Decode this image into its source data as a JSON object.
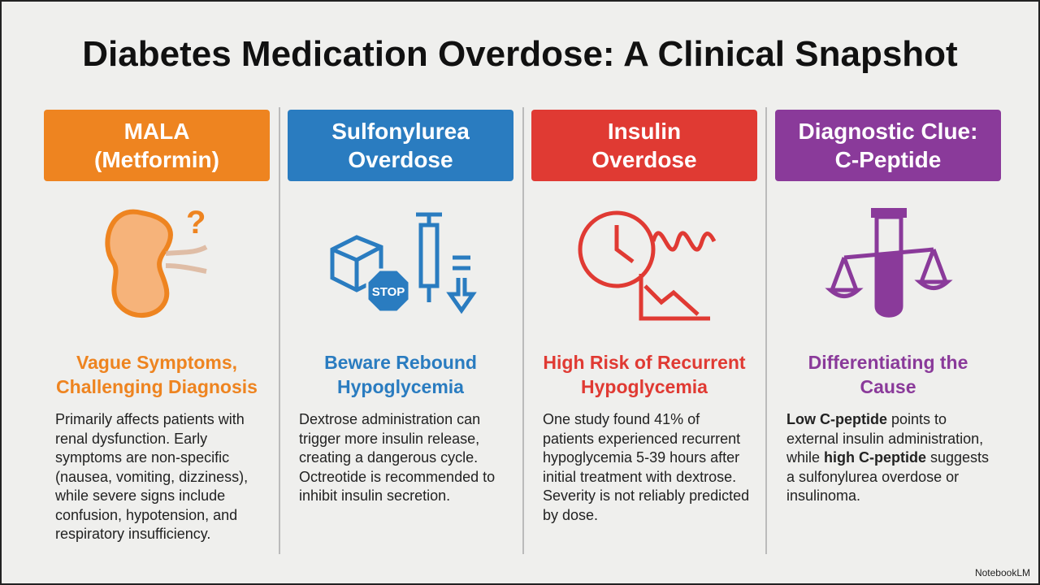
{
  "title": "Diabetes Medication Overdose: A Clinical Snapshot",
  "columns": [
    {
      "heading": [
        "MALA",
        "(Metformin)"
      ],
      "icon_label": "?",
      "subheading": [
        "Vague Symptoms,",
        "Challenging Diagnosis"
      ],
      "body": [
        {
          "text": "Primarily affects patients with renal dysfunction. Early symptoms are non-specific (nausea, vomiting, dizziness), while severe signs include confusion, hypotension, and respiratory insufficiency.",
          "bold": false
        }
      ]
    },
    {
      "heading": [
        "Sulfonylurea",
        "Overdose"
      ],
      "icon_label": "STOP",
      "subheading": [
        "Beware Rebound",
        "Hypoglycemia"
      ],
      "body": [
        {
          "text": "Dextrose administration can trigger more insulin release, creating a dangerous cycle. Octreotide is recommended to inhibit insulin secretion.",
          "bold": false
        }
      ]
    },
    {
      "heading": [
        "Insulin",
        "Overdose"
      ],
      "subheading": [
        "High Risk of Recurrent",
        "Hypoglycemia"
      ],
      "body": [
        {
          "text": "One study found 41% of patients experienced recurrent hypoglycemia 5-39 hours after initial treatment with dextrose. Severity is not reliably predicted by dose.",
          "bold": false
        }
      ]
    },
    {
      "heading": [
        "Diagnostic Clue:",
        "C-Peptide"
      ],
      "subheading": [
        "Differentiating the",
        "Cause"
      ],
      "body": [
        {
          "text": "Low C-peptide",
          "bold": true
        },
        {
          "text": " points to external insulin administration, while ",
          "bold": false
        },
        {
          "text": "high C-peptide",
          "bold": true
        },
        {
          "text": " suggests a sulfonylurea overdose or insulinoma.",
          "bold": false
        }
      ]
    }
  ],
  "footer": "NotebookLM"
}
